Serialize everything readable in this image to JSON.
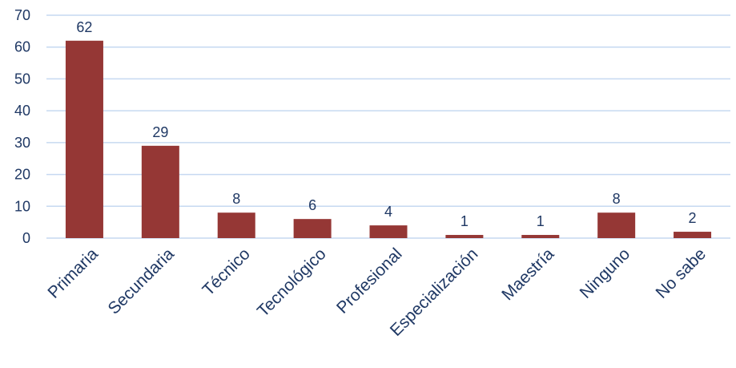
{
  "chart_data": {
    "type": "bar",
    "title": "",
    "xlabel": "",
    "ylabel": "",
    "categories": [
      "Primaria",
      "Secundaria",
      "Técnico",
      "Tecnológico",
      "Profesional",
      "Especialización",
      "Maestría",
      "Ninguno",
      "No sabe"
    ],
    "values": [
      62,
      29,
      8,
      6,
      4,
      1,
      1,
      8,
      2
    ],
    "data_labels": [
      "62",
      "29",
      "8",
      "6",
      "4",
      "1",
      "1",
      "8",
      "2"
    ],
    "ylim": [
      0,
      70
    ],
    "yticks": [
      0,
      10,
      20,
      30,
      40,
      50,
      60,
      70
    ],
    "ytick_labels": [
      "0",
      "10",
      "20",
      "30",
      "40",
      "50",
      "60",
      "70"
    ],
    "grid": true,
    "legend": "none",
    "colors": {
      "bar": "#953735",
      "grid": "#c6d9f1",
      "text": "#1f3864"
    }
  }
}
